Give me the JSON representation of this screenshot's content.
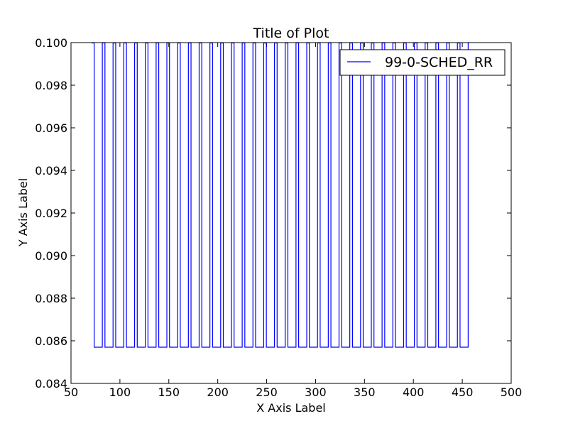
{
  "chart_data": {
    "type": "line",
    "title": "Title of Plot",
    "xlabel": "X Axis Label",
    "ylabel": "Y Axis Label",
    "xlim": [
      50,
      500
    ],
    "ylim": [
      0.084,
      0.1
    ],
    "xticks": [
      50,
      100,
      150,
      200,
      250,
      300,
      350,
      400,
      450,
      500
    ],
    "xtick_labels": [
      "50",
      "100",
      "150",
      "200",
      "250",
      "300",
      "350",
      "400",
      "450",
      "500"
    ],
    "yticks": [
      0.084,
      0.086,
      0.088,
      0.09,
      0.092,
      0.094,
      0.096,
      0.098,
      0.1
    ],
    "ytick_labels": [
      "0.084",
      "0.086",
      "0.088",
      "0.090",
      "0.092",
      "0.094",
      "0.096",
      "0.098",
      "0.100"
    ],
    "grid": false,
    "legend_position": "upper-right",
    "series": [
      {
        "name": "99-0-SCHED_RR",
        "color": "#0000ff",
        "x_start": 71,
        "x_end": 457,
        "period": 11,
        "high_width": 2.7,
        "high_value": 0.1,
        "low_value": 0.0857
      }
    ]
  }
}
